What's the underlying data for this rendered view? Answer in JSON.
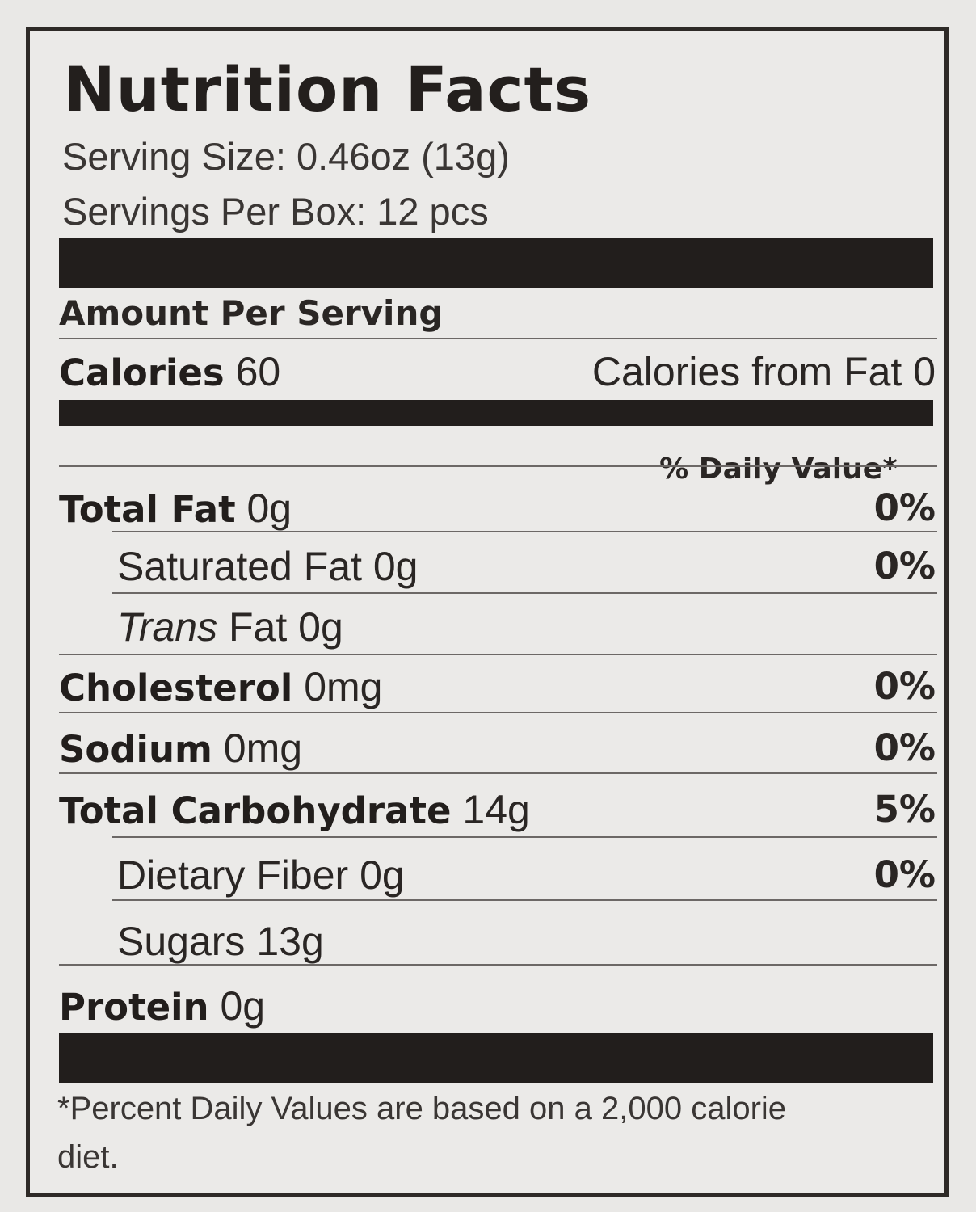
{
  "label": {
    "title": "Nutrition Facts",
    "serving_size": "Serving Size: 0.46oz (13g)",
    "servings_per_box": "Servings Per Box: 12 pcs",
    "amount_per_serving": "Amount Per Serving",
    "calories": {
      "label": "Calories",
      "value": "60",
      "from_fat": "Calories from Fat 0"
    },
    "daily_value_header": "% Daily Value*",
    "nutrients": [
      {
        "name": "Total Fat",
        "amount": "0g",
        "dv": "0%"
      },
      {
        "name": "Saturated Fat",
        "amount": "0g",
        "dv": "0%"
      },
      {
        "name_italic": "Trans",
        "name": "Fat",
        "amount": "0g",
        "dv": ""
      },
      {
        "name": "Cholesterol",
        "amount": "0mg",
        "dv": "0%"
      },
      {
        "name": "Sodium",
        "amount": "0mg",
        "dv": "0%"
      },
      {
        "name": "Total Carbohydrate",
        "amount": "14g",
        "dv": "5%"
      },
      {
        "name": "Dietary Fiber",
        "amount": "0g",
        "dv": "0%"
      },
      {
        "name": "Sugars",
        "amount": "13g",
        "dv": ""
      },
      {
        "name": "Protein",
        "amount": "0g",
        "dv": ""
      }
    ],
    "footnote_line1": "*Percent Daily Values are based on a 2,000 calorie",
    "footnote_line2": "diet."
  }
}
